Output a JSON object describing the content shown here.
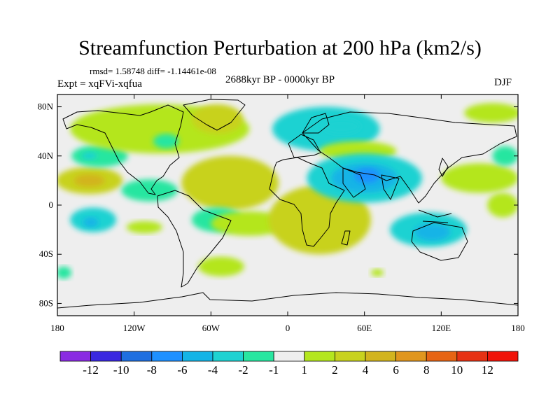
{
  "header": {
    "title": "Streamfunction Perturbation at 200 hPa (km2/s)",
    "stats": "rmsd= 1.58748 diff= -1.14461e-08",
    "experiment": "Expt = xqFVi-xqfua",
    "period": "2688kyr BP - 0000kyr BP",
    "season": "DJF"
  },
  "chart_data": {
    "type": "heatmap",
    "title": "Streamfunction Perturbation at 200 hPa (km2/s)",
    "projection": "cylindrical equidistant",
    "xlabel": "",
    "ylabel": "",
    "xlim": [
      -180,
      180
    ],
    "ylim": [
      -90,
      90
    ],
    "x_ticks": [
      {
        "value": -180,
        "label": "180"
      },
      {
        "value": -120,
        "label": "120W"
      },
      {
        "value": -60,
        "label": "60W"
      },
      {
        "value": 0,
        "label": "0"
      },
      {
        "value": 60,
        "label": "60E"
      },
      {
        "value": 120,
        "label": "120E"
      },
      {
        "value": 180,
        "label": "180"
      }
    ],
    "y_ticks": [
      {
        "value": 80,
        "label": "80N"
      },
      {
        "value": 40,
        "label": "40N"
      },
      {
        "value": 0,
        "label": "0"
      },
      {
        "value": -40,
        "label": "40S"
      },
      {
        "value": -80,
        "label": "80S"
      }
    ],
    "colorbar": {
      "levels": [
        "-12",
        "-10",
        "-8",
        "-6",
        "-4",
        "-2",
        "-1",
        "1",
        "2",
        "4",
        "6",
        "8",
        "10",
        "12"
      ],
      "colors": [
        "#8a2be2",
        "#3a28e0",
        "#1f6fe0",
        "#1e90ff",
        "#14b4e6",
        "#1ed2d2",
        "#28e6a0",
        "#eeeeee",
        "#b4e61e",
        "#c8d21e",
        "#d2b41e",
        "#e0961e",
        "#e66414",
        "#e63214",
        "#f0140a"
      ]
    },
    "anomaly_regions": [
      {
        "lon": -155,
        "lat": 20,
        "rx": 26,
        "ry": 11,
        "value": 3
      },
      {
        "lon": -155,
        "lat": 20,
        "rx": 12,
        "ry": 5,
        "value": 5
      },
      {
        "lon": -152,
        "lat": -12,
        "rx": 18,
        "ry": 10,
        "value": -2
      },
      {
        "lon": -154,
        "lat": -14,
        "rx": 6,
        "ry": 4,
        "value": -4
      },
      {
        "lon": -108,
        "lat": 12,
        "rx": 22,
        "ry": 9,
        "value": -1.5
      },
      {
        "lon": -112,
        "lat": -18,
        "rx": 14,
        "ry": 5,
        "value": 1.5
      },
      {
        "lon": -147,
        "lat": 40,
        "rx": 22,
        "ry": 9,
        "value": -1.5
      },
      {
        "lon": -155,
        "lat": 40,
        "rx": 6,
        "ry": 3,
        "value": -3
      },
      {
        "lon": -100,
        "lat": 62,
        "rx": 70,
        "ry": 20,
        "value": 1.5
      },
      {
        "lon": -95,
        "lat": 52,
        "rx": 10,
        "ry": 6,
        "value": -1.5
      },
      {
        "lon": -55,
        "lat": 70,
        "rx": 20,
        "ry": 12,
        "value": 2.5
      },
      {
        "lon": -45,
        "lat": 18,
        "rx": 38,
        "ry": 22,
        "value": 3
      },
      {
        "lon": -55,
        "lat": -12,
        "rx": 20,
        "ry": 10,
        "value": -1.5
      },
      {
        "lon": -30,
        "lat": -15,
        "rx": 30,
        "ry": 10,
        "value": 1.5
      },
      {
        "lon": -52,
        "lat": -50,
        "rx": 18,
        "ry": 8,
        "value": 1.5
      },
      {
        "lon": 30,
        "lat": 62,
        "rx": 42,
        "ry": 18,
        "value": -2
      },
      {
        "lon": 42,
        "lat": 64,
        "rx": 15,
        "ry": 6,
        "value": -3
      },
      {
        "lon": 55,
        "lat": 44,
        "rx": 30,
        "ry": 8,
        "value": 1.5
      },
      {
        "lon": 25,
        "lat": -12,
        "rx": 40,
        "ry": 28,
        "value": 3
      },
      {
        "lon": 60,
        "lat": 22,
        "rx": 45,
        "ry": 20,
        "value": -2.5
      },
      {
        "lon": 60,
        "lat": 22,
        "rx": 26,
        "ry": 12,
        "value": -4
      },
      {
        "lon": 62,
        "lat": 24,
        "rx": 10,
        "ry": 6,
        "value": -6
      },
      {
        "lon": 110,
        "lat": -20,
        "rx": 30,
        "ry": 14,
        "value": -2
      },
      {
        "lon": 113,
        "lat": -22,
        "rx": 14,
        "ry": 7,
        "value": -4
      },
      {
        "lon": 150,
        "lat": 22,
        "rx": 30,
        "ry": 12,
        "value": 1.5
      },
      {
        "lon": 168,
        "lat": 0,
        "rx": 12,
        "ry": 10,
        "value": 1.5
      },
      {
        "lon": 160,
        "lat": 75,
        "rx": 22,
        "ry": 8,
        "value": 1.5
      },
      {
        "lon": 170,
        "lat": 40,
        "rx": 10,
        "ry": 8,
        "value": -1.5
      },
      {
        "lon": -175,
        "lat": -55,
        "rx": 6,
        "ry": 5,
        "value": -1.5
      },
      {
        "lon": 70,
        "lat": -55,
        "rx": 5,
        "ry": 3,
        "value": 1.5
      }
    ]
  }
}
